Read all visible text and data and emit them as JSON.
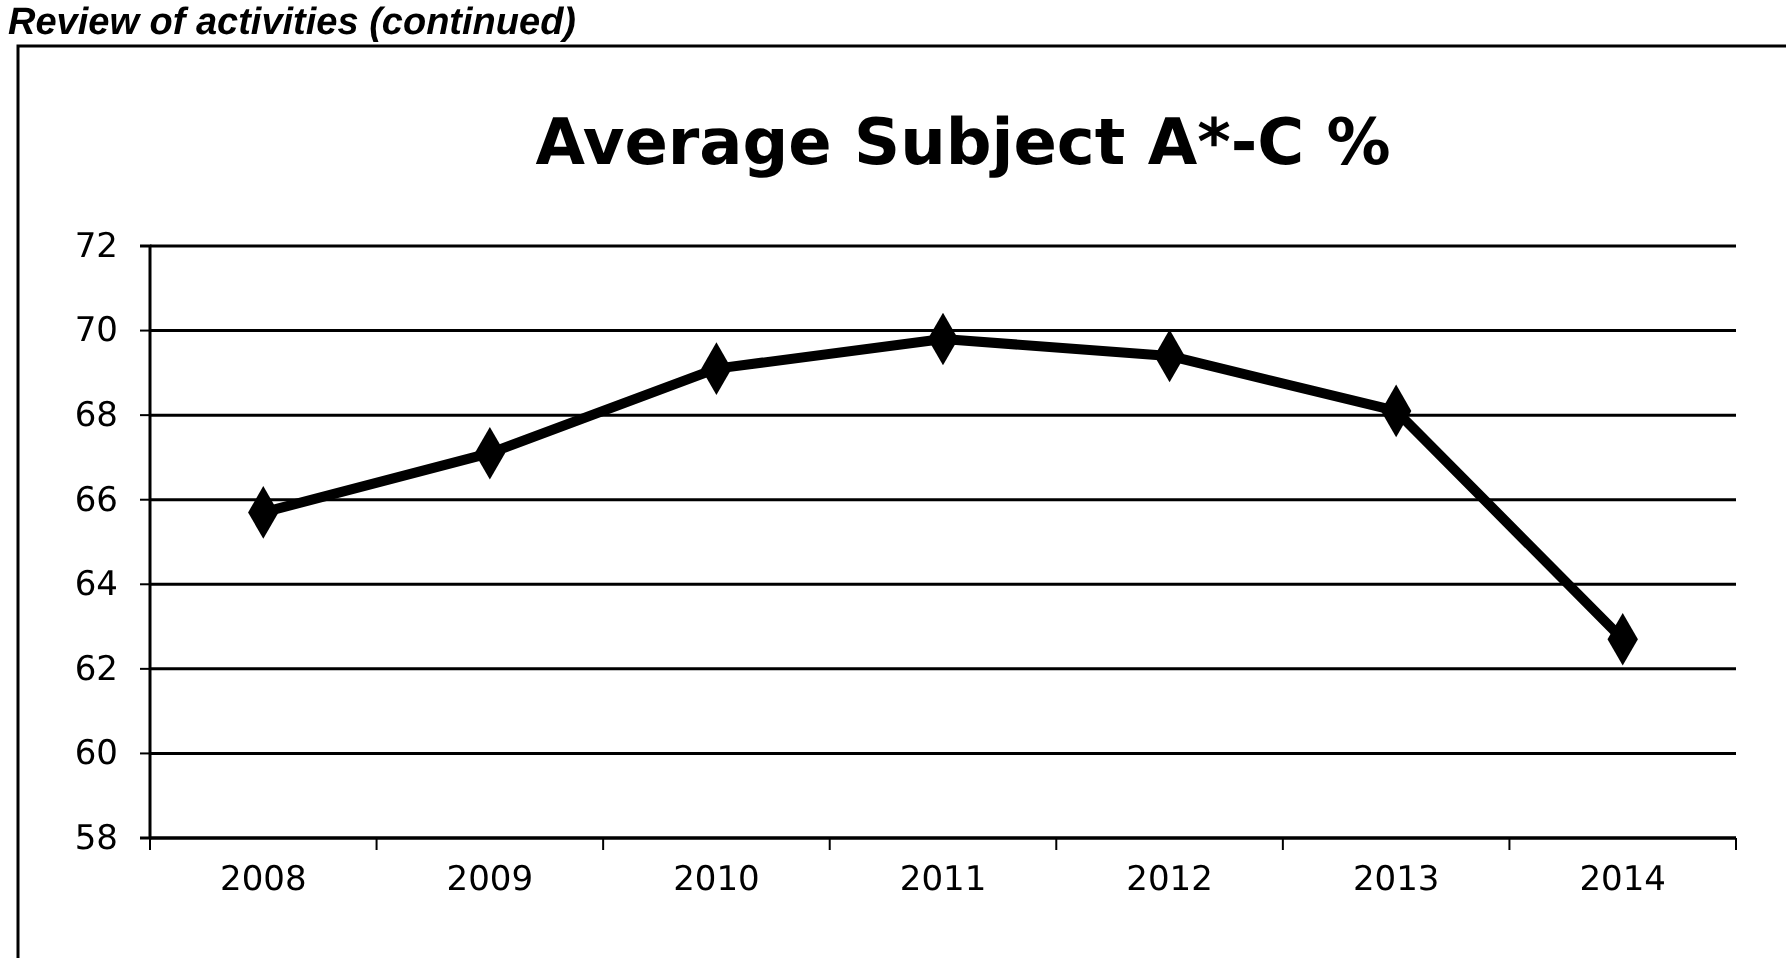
{
  "chart_data": {
    "type": "line",
    "title": "Average Subject A*-C %",
    "annotations": [
      "Review of activities (continued)"
    ],
    "categories": [
      "2008",
      "2009",
      "2010",
      "2011",
      "2012",
      "2013",
      "2014"
    ],
    "series": [
      {
        "color": "#000000",
        "values": [
          65.7,
          67.1,
          69.1,
          69.8,
          69.4,
          68.1,
          62.7
        ]
      }
    ],
    "ylim": [
      58,
      72
    ],
    "yticks": [
      58,
      60,
      62,
      64,
      66,
      68,
      70,
      72
    ],
    "grid": "y",
    "marker": "diamond",
    "line_style": "solid"
  }
}
